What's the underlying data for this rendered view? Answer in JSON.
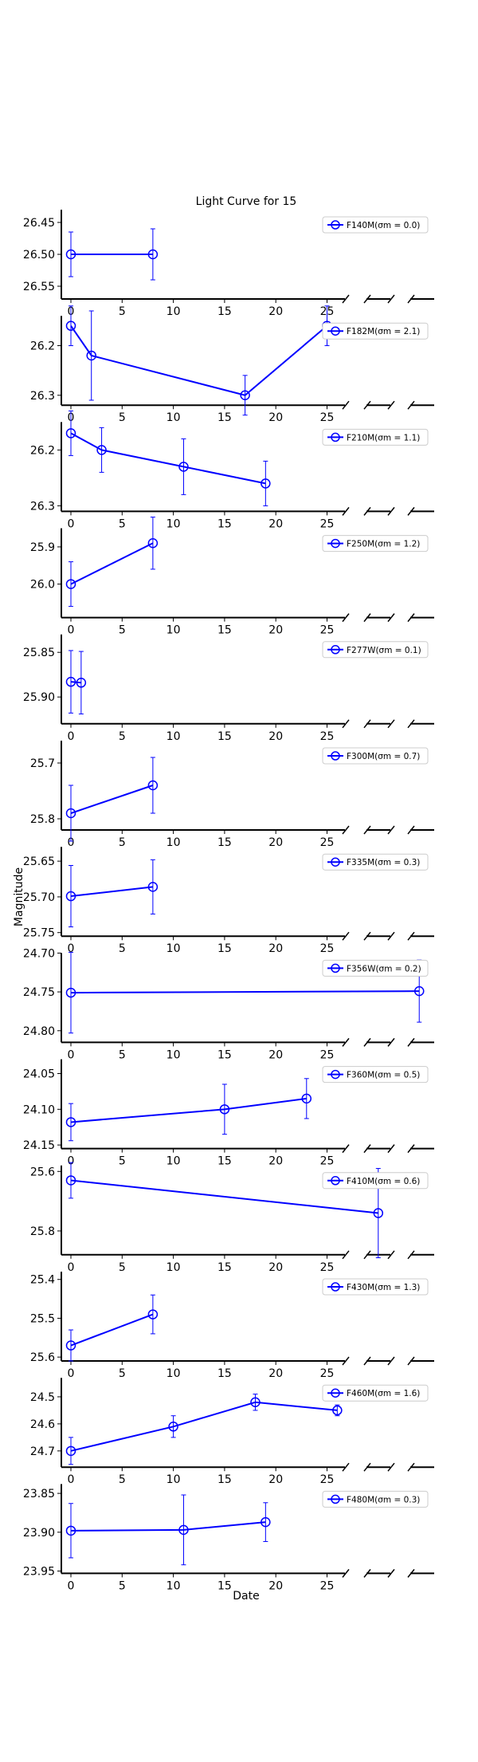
{
  "chart_data": {
    "type": "line",
    "title": "Light Curve for 15",
    "xlabel": "Date",
    "ylabel": "Magnitude",
    "x_range": [
      -1,
      35
    ],
    "x_ticks": [
      0,
      5,
      10,
      15,
      20,
      25
    ],
    "y_inverted": true,
    "broken_x_axis": true,
    "grid": false,
    "legend_placement": "top-right",
    "series_color": "#0000ff",
    "panels": [
      {
        "legend": "F140M(σm = 0.0)",
        "ylim": [
          26.57,
          26.43
        ],
        "yticks": [
          "26.45",
          "26.50",
          "26.55"
        ],
        "points": [
          {
            "x": 0,
            "y": 26.5,
            "err": 0.035
          },
          {
            "x": 8,
            "y": 26.5,
            "err": 0.04
          }
        ]
      },
      {
        "legend": "F182M(σm = 2.1)",
        "ylim": [
          26.32,
          26.14
        ],
        "yticks": [
          "26.2",
          "26.3"
        ],
        "points": [
          {
            "x": 0,
            "y": 26.16,
            "err": 0.04
          },
          {
            "x": 2,
            "y": 26.22,
            "err": 0.09
          },
          {
            "x": 17,
            "y": 26.3,
            "err": 0.04
          },
          {
            "x": 25,
            "y": 26.16,
            "err": 0.04
          }
        ]
      },
      {
        "legend": "F210M(σm = 1.1)",
        "ylim": [
          26.31,
          26.15
        ],
        "yticks": [
          "26.2",
          "26.3"
        ],
        "points": [
          {
            "x": 0,
            "y": 26.17,
            "err": 0.04
          },
          {
            "x": 3,
            "y": 26.2,
            "err": 0.04
          },
          {
            "x": 11,
            "y": 26.23,
            "err": 0.05
          },
          {
            "x": 19,
            "y": 26.26,
            "err": 0.04
          }
        ]
      },
      {
        "legend": "F250M(σm = 1.2)",
        "ylim": [
          26.09,
          25.85
        ],
        "yticks": [
          "25.9",
          "26.0"
        ],
        "points": [
          {
            "x": 0,
            "y": 26.0,
            "err": 0.06
          },
          {
            "x": 8,
            "y": 25.89,
            "err": 0.07
          }
        ]
      },
      {
        "legend": "F277W(σm = 0.1)",
        "ylim": [
          25.93,
          25.83
        ],
        "yticks": [
          "25.85",
          "25.90"
        ],
        "points": [
          {
            "x": 0,
            "y": 25.883,
            "err": 0.035
          },
          {
            "x": 1,
            "y": 25.884,
            "err": 0.035
          }
        ]
      },
      {
        "legend": "F300M(σm = 0.7)",
        "ylim": [
          25.82,
          25.66
        ],
        "yticks": [
          "25.7",
          "25.8"
        ],
        "points": [
          {
            "x": 0,
            "y": 25.79,
            "err": 0.05
          },
          {
            "x": 8,
            "y": 25.74,
            "err": 0.05
          }
        ]
      },
      {
        "legend": "F335M(σm = 0.3)",
        "ylim": [
          25.755,
          25.63
        ],
        "yticks": [
          "25.65",
          "25.70",
          "25.75"
        ],
        "points": [
          {
            "x": 0,
            "y": 25.699,
            "err": 0.043
          },
          {
            "x": 8,
            "y": 25.686,
            "err": 0.038
          }
        ]
      },
      {
        "legend": "F356W(σm = 0.2)",
        "ylim": [
          24.815,
          24.7
        ],
        "yticks": [
          "24.70",
          "24.75",
          "24.80"
        ],
        "points": [
          {
            "x": 0,
            "y": 24.751,
            "err": 0.052
          },
          {
            "x": 34,
            "y": 24.749,
            "err": 0.04
          }
        ]
      },
      {
        "legend": "F360M(σm = 0.5)",
        "ylim": [
          24.155,
          24.03
        ],
        "yticks": [
          "24.05",
          "24.10",
          "24.15"
        ],
        "points": [
          {
            "x": 0,
            "y": 24.118,
            "err": 0.026
          },
          {
            "x": 15,
            "y": 24.1,
            "err": 0.035
          },
          {
            "x": 23,
            "y": 24.085,
            "err": 0.028
          }
        ]
      },
      {
        "legend": "F410M(σm = 0.6)",
        "ylim": [
          25.88,
          25.58
        ],
        "yticks": [
          "25.6",
          "25.8"
        ],
        "points": [
          {
            "x": 0,
            "y": 25.63,
            "err": 0.06
          },
          {
            "x": 30,
            "y": 25.74,
            "err": 0.15
          }
        ]
      },
      {
        "legend": "F430M(σm = 1.3)",
        "ylim": [
          25.61,
          25.38
        ],
        "yticks": [
          "25.4",
          "25.5",
          "25.6"
        ],
        "points": [
          {
            "x": 0,
            "y": 25.57,
            "err": 0.04
          },
          {
            "x": 8,
            "y": 25.49,
            "err": 0.05
          }
        ]
      },
      {
        "legend": "F460M(σm = 1.6)",
        "ylim": [
          24.76,
          24.43
        ],
        "yticks": [
          "24.5",
          "24.6",
          "24.7"
        ],
        "points": [
          {
            "x": 0,
            "y": 24.7,
            "err": 0.05
          },
          {
            "x": 10,
            "y": 24.61,
            "err": 0.04
          },
          {
            "x": 18,
            "y": 24.52,
            "err": 0.03
          },
          {
            "x": 26,
            "y": 24.55,
            "err": 0.02
          }
        ]
      },
      {
        "legend": "F480M(σm = 0.3)",
        "ylim": [
          23.953,
          23.838
        ],
        "yticks": [
          "23.85",
          "23.90",
          "23.95"
        ],
        "points": [
          {
            "x": 0,
            "y": 23.898,
            "err": 0.035
          },
          {
            "x": 11,
            "y": 23.897,
            "err": 0.045
          },
          {
            "x": 19,
            "y": 23.887,
            "err": 0.025
          }
        ]
      }
    ]
  }
}
